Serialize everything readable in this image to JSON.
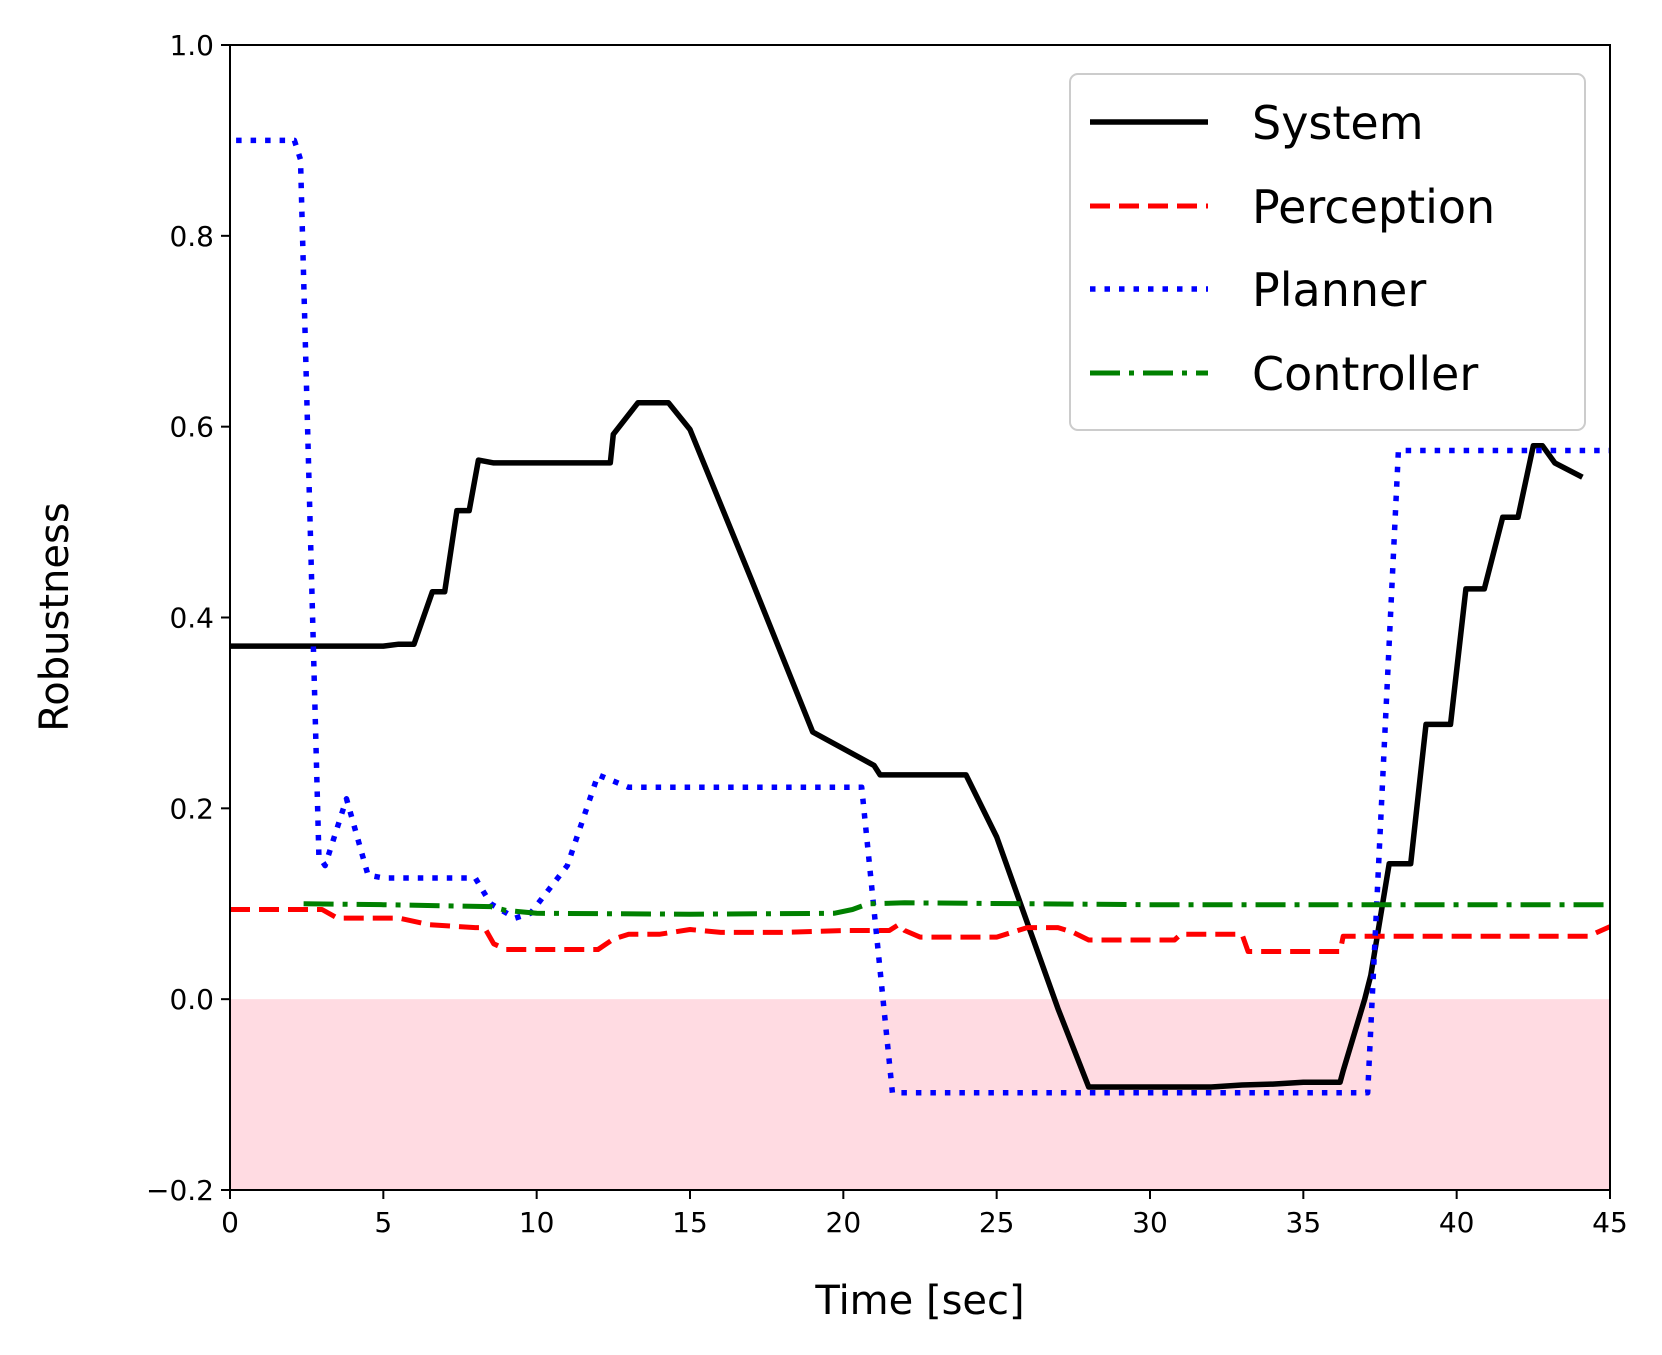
{
  "chart_data": {
    "type": "line",
    "title": "",
    "xlabel": "Time [sec]",
    "ylabel": "Robustness",
    "xlim": [
      0,
      45
    ],
    "ylim": [
      -0.2,
      1.0
    ],
    "xticks": [
      0,
      5,
      10,
      15,
      20,
      25,
      30,
      35,
      40,
      45
    ],
    "yticks": [
      -0.2,
      0.0,
      0.2,
      0.4,
      0.6,
      0.8,
      1.0
    ],
    "xtick_labels": [
      "0",
      "5",
      "10",
      "15",
      "20",
      "25",
      "30",
      "35",
      "40",
      "45"
    ],
    "ytick_labels": [
      "−0.2",
      "0.0",
      "0.2",
      "0.4",
      "0.6",
      "0.8",
      "1.0"
    ],
    "grid": false,
    "legend_position": "top-right",
    "shaded_region": {
      "y_from": -0.2,
      "y_to": 0.0,
      "color": "#ffdbe2"
    },
    "series": [
      {
        "name": "System",
        "color": "#000000",
        "style": "solid",
        "x": [
          0,
          5,
          5.5,
          6,
          6.6,
          7,
          7.4,
          7.8,
          8.1,
          8.6,
          9,
          10,
          11,
          12,
          12.4,
          12.5,
          13.3,
          14.3,
          15,
          17,
          19,
          21,
          21.2,
          22,
          24,
          25,
          26,
          27,
          28,
          30,
          32,
          33,
          34,
          35,
          36.2,
          36.3,
          37,
          37.2,
          37.8,
          38.5,
          39,
          39.8,
          40.3,
          40.9,
          41.5,
          42,
          42.5,
          42.8,
          43.2,
          44.1
        ],
        "values": [
          0.37,
          0.37,
          0.372,
          0.372,
          0.427,
          0.427,
          0.512,
          0.512,
          0.565,
          0.562,
          0.562,
          0.562,
          0.562,
          0.562,
          0.562,
          0.592,
          0.625,
          0.625,
          0.597,
          0.44,
          0.28,
          0.245,
          0.235,
          0.235,
          0.235,
          0.17,
          0.08,
          -0.01,
          -0.092,
          -0.092,
          -0.092,
          -0.09,
          -0.089,
          -0.087,
          -0.087,
          -0.075,
          0.0,
          0.025,
          0.142,
          0.142,
          0.288,
          0.288,
          0.43,
          0.43,
          0.505,
          0.505,
          0.58,
          0.58,
          0.562,
          0.547
        ]
      },
      {
        "name": "Perception",
        "color": "#ff0000",
        "style": "dashed",
        "x": [
          0,
          3,
          3.5,
          5.5,
          6.5,
          8,
          8.3,
          8.6,
          9,
          10,
          11,
          12,
          12.5,
          13,
          14,
          15,
          16,
          18,
          20,
          21.5,
          21.8,
          22,
          22.5,
          23,
          25,
          26,
          27,
          27.5,
          28,
          30,
          30.8,
          31,
          33,
          33.2,
          35,
          36.2,
          36.3,
          37,
          38,
          40,
          42,
          44,
          44.3,
          45
        ],
        "values": [
          0.094,
          0.094,
          0.085,
          0.085,
          0.078,
          0.075,
          0.075,
          0.058,
          0.052,
          0.052,
          0.052,
          0.052,
          0.063,
          0.068,
          0.068,
          0.073,
          0.07,
          0.07,
          0.072,
          0.072,
          0.078,
          0.072,
          0.065,
          0.065,
          0.065,
          0.075,
          0.075,
          0.07,
          0.062,
          0.062,
          0.062,
          0.068,
          0.068,
          0.05,
          0.05,
          0.05,
          0.066,
          0.066,
          0.066,
          0.066,
          0.066,
          0.066,
          0.066,
          0.076
        ]
      },
      {
        "name": "Planner",
        "color": "#0000ff",
        "style": "dotted",
        "x": [
          0.2,
          2.1,
          2.3,
          2.9,
          3.1,
          3.8,
          4.5,
          5,
          8,
          8.5,
          9.3,
          9.8,
          11,
          12,
          13,
          20.6,
          21.6,
          30,
          37.1,
          38.1,
          45
        ],
        "values": [
          0.9,
          0.9,
          0.88,
          0.15,
          0.14,
          0.21,
          0.13,
          0.127,
          0.127,
          0.1,
          0.085,
          0.09,
          0.14,
          0.235,
          0.222,
          0.222,
          -0.098,
          -0.098,
          -0.098,
          0.575,
          0.575
        ]
      },
      {
        "name": "Controller",
        "color": "#008000",
        "style": "dashdot",
        "x": [
          2.4,
          5,
          8.5,
          9,
          10,
          15,
          19.7,
          20.3,
          20.8,
          22,
          30,
          45
        ],
        "values": [
          0.1,
          0.099,
          0.097,
          0.093,
          0.09,
          0.089,
          0.09,
          0.094,
          0.1,
          0.101,
          0.099,
          0.099
        ]
      }
    ]
  }
}
